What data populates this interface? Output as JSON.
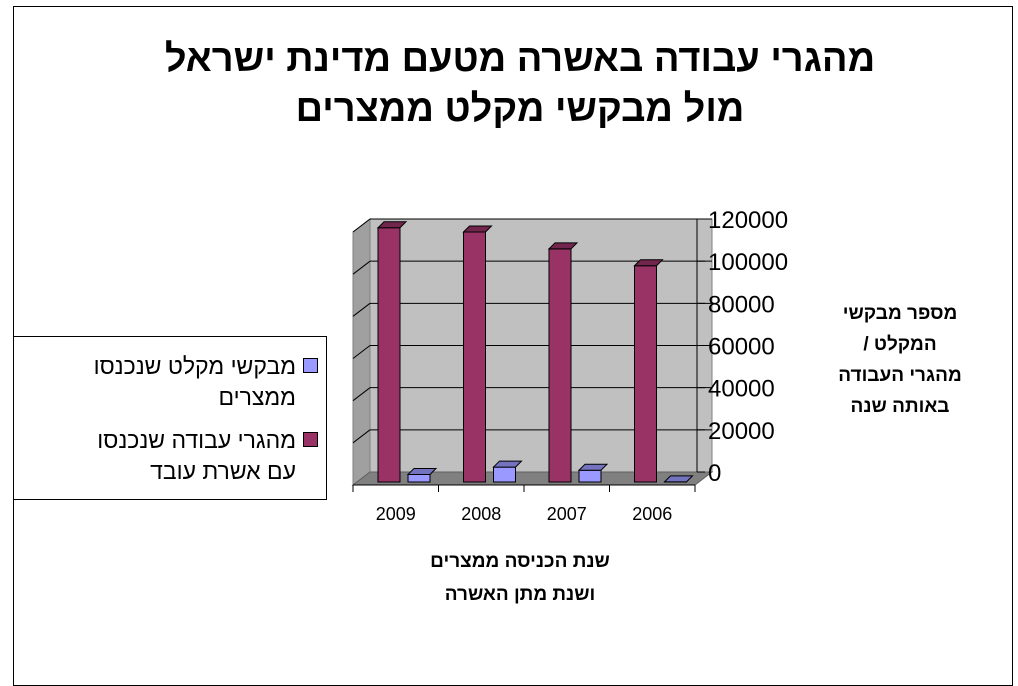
{
  "chart_data": {
    "type": "bar",
    "title_line1": "מהגרי עבודה באשרה מטעם מדינת ישראל",
    "title_line2": "מול מבקשי מקלט ממצרים",
    "ylabel": "מספר מבקשי\nהמקלט /\nמהגרי העבודה\nבאותה שנה",
    "xlabel": "שנת הכניסה ממצרים\nושנת מתן האשרה",
    "categories": [
      "2009",
      "2008",
      "2007",
      "2006"
    ],
    "series": [
      {
        "name": "מבקשי מקלט שנכנסו\nממצרים",
        "values": [
          5000,
          8500,
          7000,
          1500
        ],
        "color": "#9999ff"
      },
      {
        "name": "מהגרי עבודה שנכנסו\nעם אשרת עובד",
        "values": [
          122000,
          120000,
          112000,
          104000
        ],
        "color": "#993366"
      }
    ],
    "y_ticks": [
      "0",
      "20000",
      "40000",
      "60000",
      "80000",
      "100000",
      "120000"
    ],
    "ylim": [
      0,
      120000
    ],
    "grid": true,
    "legend_position": "left"
  }
}
